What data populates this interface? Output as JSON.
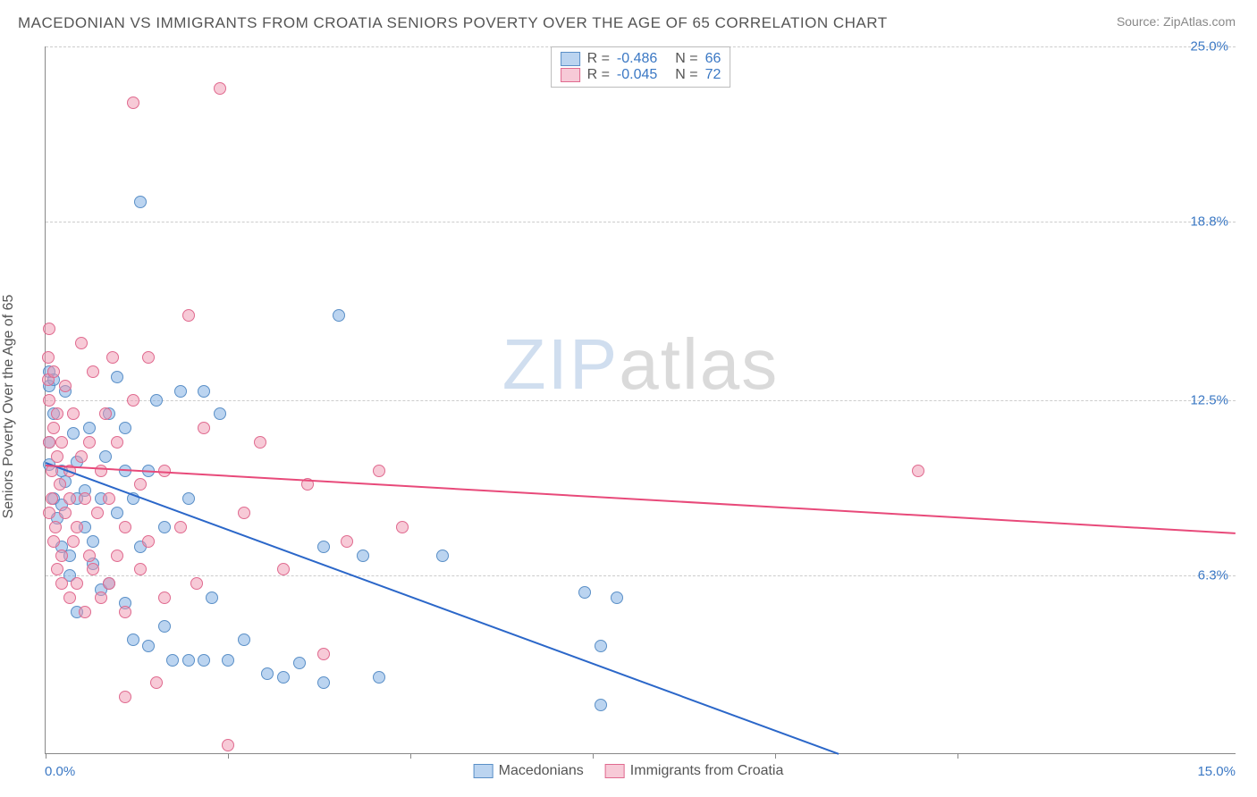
{
  "title": "MACEDONIAN VS IMMIGRANTS FROM CROATIA SENIORS POVERTY OVER THE AGE OF 65 CORRELATION CHART",
  "source_prefix": "Source: ",
  "source_link": "ZipAtlas.com",
  "ylabel": "Seniors Poverty Over the Age of 65",
  "watermark_a": "ZIP",
  "watermark_b": "atlas",
  "chart": {
    "type": "scatter",
    "xlim": [
      0.0,
      15.0
    ],
    "ylim": [
      0.0,
      25.0
    ],
    "x_axis_label_left": "0.0%",
    "x_axis_label_right": "15.0%",
    "x_axis_label_color": "#3b78c4",
    "y_ticks": [
      {
        "v": 6.3,
        "label": "6.3%"
      },
      {
        "v": 12.5,
        "label": "12.5%"
      },
      {
        "v": 18.8,
        "label": "18.8%"
      },
      {
        "v": 25.0,
        "label": "25.0%"
      }
    ],
    "y_tick_color": "#3b78c4",
    "grid_color": "#cccccc",
    "axis_color": "#888888",
    "background_color": "#ffffff",
    "x_tick_positions": [
      0.0,
      2.3,
      4.6,
      6.9,
      9.2,
      11.5
    ],
    "series": [
      {
        "name": "Macedonians",
        "color_fill": "rgba(120,170,225,0.5)",
        "color_stroke": "#5a8fc7",
        "line_color": "#2b67c9",
        "R": "-0.486",
        "N": "66",
        "trend": {
          "x1": 0.0,
          "y1": 10.3,
          "x2": 10.0,
          "y2": 0.0
        },
        "points": [
          [
            0.05,
            10.2
          ],
          [
            0.05,
            11.0
          ],
          [
            0.05,
            13.0
          ],
          [
            0.05,
            13.5
          ],
          [
            0.1,
            9.0
          ],
          [
            0.1,
            12.0
          ],
          [
            0.1,
            13.2
          ],
          [
            0.15,
            8.3
          ],
          [
            0.2,
            7.3
          ],
          [
            0.2,
            8.8
          ],
          [
            0.2,
            10.0
          ],
          [
            0.25,
            9.6
          ],
          [
            0.25,
            12.8
          ],
          [
            0.3,
            6.3
          ],
          [
            0.3,
            7.0
          ],
          [
            0.35,
            11.3
          ],
          [
            0.4,
            5.0
          ],
          [
            0.4,
            9.0
          ],
          [
            0.4,
            10.3
          ],
          [
            0.5,
            8.0
          ],
          [
            0.5,
            9.3
          ],
          [
            0.55,
            11.5
          ],
          [
            0.6,
            6.7
          ],
          [
            0.6,
            7.5
          ],
          [
            0.7,
            5.8
          ],
          [
            0.7,
            9.0
          ],
          [
            0.75,
            10.5
          ],
          [
            0.8,
            6.0
          ],
          [
            0.8,
            12.0
          ],
          [
            0.9,
            8.5
          ],
          [
            0.9,
            13.3
          ],
          [
            1.0,
            5.3
          ],
          [
            1.0,
            10.0
          ],
          [
            1.0,
            11.5
          ],
          [
            1.1,
            4.0
          ],
          [
            1.1,
            9.0
          ],
          [
            1.2,
            19.5
          ],
          [
            1.2,
            7.3
          ],
          [
            1.3,
            3.8
          ],
          [
            1.3,
            10.0
          ],
          [
            1.4,
            12.5
          ],
          [
            1.5,
            4.5
          ],
          [
            1.5,
            8.0
          ],
          [
            1.6,
            3.3
          ],
          [
            1.7,
            12.8
          ],
          [
            1.8,
            3.3
          ],
          [
            1.8,
            9.0
          ],
          [
            2.0,
            3.3
          ],
          [
            2.0,
            12.8
          ],
          [
            2.1,
            5.5
          ],
          [
            2.2,
            12.0
          ],
          [
            2.3,
            3.3
          ],
          [
            2.5,
            4.0
          ],
          [
            2.8,
            2.8
          ],
          [
            3.0,
            2.7
          ],
          [
            3.2,
            3.2
          ],
          [
            3.5,
            7.3
          ],
          [
            3.5,
            2.5
          ],
          [
            3.7,
            15.5
          ],
          [
            4.0,
            7.0
          ],
          [
            4.2,
            2.7
          ],
          [
            5.0,
            7.0
          ],
          [
            6.8,
            5.7
          ],
          [
            7.0,
            3.8
          ],
          [
            7.0,
            1.7
          ],
          [
            7.2,
            5.5
          ]
        ]
      },
      {
        "name": "Immigrants from Croatia",
        "color_fill": "rgba(240,150,175,0.5)",
        "color_stroke": "#e06a8f",
        "line_color": "#e84a7a",
        "R": "-0.045",
        "N": "72",
        "trend": {
          "x1": 0.0,
          "y1": 10.2,
          "x2": 15.0,
          "y2": 7.8
        },
        "points": [
          [
            0.03,
            14.0
          ],
          [
            0.03,
            13.2
          ],
          [
            0.05,
            11.0
          ],
          [
            0.05,
            12.5
          ],
          [
            0.05,
            8.5
          ],
          [
            0.05,
            15.0
          ],
          [
            0.08,
            10.0
          ],
          [
            0.08,
            9.0
          ],
          [
            0.1,
            7.5
          ],
          [
            0.1,
            11.5
          ],
          [
            0.1,
            13.5
          ],
          [
            0.12,
            8.0
          ],
          [
            0.15,
            6.5
          ],
          [
            0.15,
            10.5
          ],
          [
            0.15,
            12.0
          ],
          [
            0.18,
            9.5
          ],
          [
            0.2,
            6.0
          ],
          [
            0.2,
            7.0
          ],
          [
            0.2,
            11.0
          ],
          [
            0.25,
            8.5
          ],
          [
            0.25,
            13.0
          ],
          [
            0.3,
            5.5
          ],
          [
            0.3,
            9.0
          ],
          [
            0.3,
            10.0
          ],
          [
            0.35,
            7.5
          ],
          [
            0.35,
            12.0
          ],
          [
            0.4,
            6.0
          ],
          [
            0.4,
            8.0
          ],
          [
            0.45,
            14.5
          ],
          [
            0.45,
            10.5
          ],
          [
            0.5,
            5.0
          ],
          [
            0.5,
            9.0
          ],
          [
            0.55,
            11.0
          ],
          [
            0.55,
            7.0
          ],
          [
            0.6,
            6.5
          ],
          [
            0.6,
            13.5
          ],
          [
            0.65,
            8.5
          ],
          [
            0.7,
            5.5
          ],
          [
            0.7,
            10.0
          ],
          [
            0.75,
            12.0
          ],
          [
            0.8,
            6.0
          ],
          [
            0.8,
            9.0
          ],
          [
            0.85,
            14.0
          ],
          [
            0.9,
            7.0
          ],
          [
            0.9,
            11.0
          ],
          [
            1.0,
            5.0
          ],
          [
            1.0,
            8.0
          ],
          [
            1.0,
            2.0
          ],
          [
            1.1,
            12.5
          ],
          [
            1.1,
            23.0
          ],
          [
            1.2,
            6.5
          ],
          [
            1.2,
            9.5
          ],
          [
            1.3,
            14.0
          ],
          [
            1.3,
            7.5
          ],
          [
            1.4,
            2.5
          ],
          [
            1.5,
            10.0
          ],
          [
            1.5,
            5.5
          ],
          [
            1.7,
            8.0
          ],
          [
            1.8,
            15.5
          ],
          [
            1.9,
            6.0
          ],
          [
            2.0,
            11.5
          ],
          [
            2.2,
            23.5
          ],
          [
            2.3,
            0.3
          ],
          [
            2.5,
            8.5
          ],
          [
            2.7,
            11.0
          ],
          [
            3.0,
            6.5
          ],
          [
            3.3,
            9.5
          ],
          [
            3.5,
            3.5
          ],
          [
            3.8,
            7.5
          ],
          [
            4.2,
            10.0
          ],
          [
            4.5,
            8.0
          ],
          [
            11.0,
            10.0
          ]
        ]
      }
    ],
    "bottom_legend": [
      {
        "label": "Macedonians",
        "fill": "rgba(120,170,225,0.5)",
        "stroke": "#5a8fc7"
      },
      {
        "label": "Immigrants from Croatia",
        "fill": "rgba(240,150,175,0.5)",
        "stroke": "#e06a8f"
      }
    ]
  }
}
